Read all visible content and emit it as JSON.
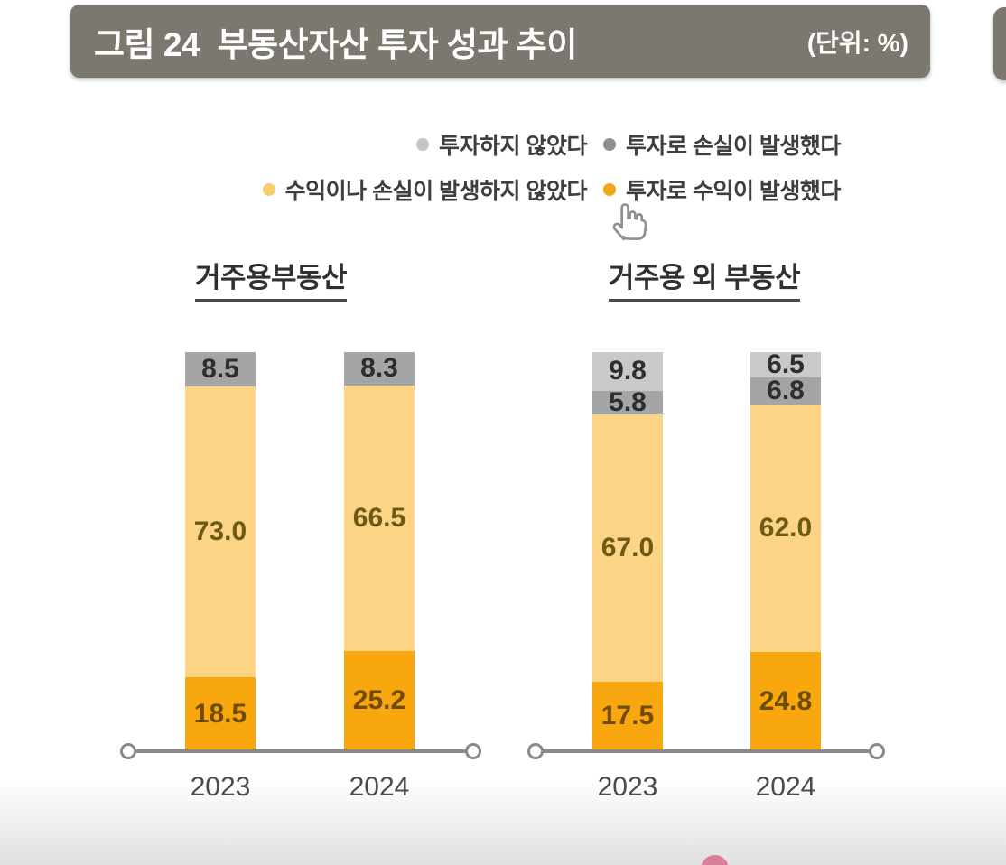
{
  "figure": {
    "title": "그림 24  부동산자산 투자 성과 추이",
    "unit": "(단위: %)",
    "title_bar_color": "#7C7870"
  },
  "legend": {
    "items": [
      {
        "label": "투자하지 않았다",
        "color": "#C5C5C5"
      },
      {
        "label": "투자로 손실이 발생했다",
        "color": "#8E8E8E"
      },
      {
        "label": "수익이나 손실이 발생하지 않았다",
        "color": "#F6CF70"
      },
      {
        "label": "투자로 수익이 발생했다",
        "color": "#F0A713"
      }
    ]
  },
  "cursor": {
    "icon": "hand-pointer"
  },
  "decorations": {
    "bottom_partial_dot_color": "#DB7E97"
  },
  "chart_data": [
    {
      "type": "bar",
      "subtype": "stacked-vertical",
      "title": "거주용부동산",
      "categories": [
        "2023",
        "2024"
      ],
      "stack_order": "bottom-to-top",
      "value_unit": "%",
      "ylim": [
        0,
        100
      ],
      "grid": false,
      "series": [
        {
          "name": "투자로 수익이 발생했다",
          "color": "#F8A70E",
          "label_color": "#704B03",
          "values": [
            18.5,
            25.2
          ]
        },
        {
          "name": "수익이나 손실이 발생하지 않았다",
          "color": "#FBD585",
          "label_color": "#6E5A16",
          "values": [
            73.0,
            66.5
          ]
        },
        {
          "name": "투자로 손실이 발생했다",
          "color": "#A5A5A5",
          "label_color": "#2E2E2E",
          "values": [
            8.5,
            8.3
          ]
        },
        {
          "name": "투자하지 않았다",
          "color": "#C9C9C9",
          "label_color": "#2E2E2E",
          "values": [
            null,
            null
          ]
        }
      ]
    },
    {
      "type": "bar",
      "subtype": "stacked-vertical",
      "title": "거주용 외 부동산",
      "categories": [
        "2023",
        "2024"
      ],
      "stack_order": "bottom-to-top",
      "value_unit": "%",
      "ylim": [
        0,
        100
      ],
      "grid": false,
      "series": [
        {
          "name": "투자로 수익이 발생했다",
          "color": "#F8A70E",
          "label_color": "#704B03",
          "values": [
            17.5,
            24.8
          ]
        },
        {
          "name": "수익이나 손실이 발생하지 않았다",
          "color": "#FBD585",
          "label_color": "#6E5A16",
          "values": [
            67.0,
            62.0
          ]
        },
        {
          "name": "투자로 손실이 발생했다",
          "color": "#A5A5A5",
          "label_color": "#2E2E2E",
          "values": [
            5.8,
            6.8
          ]
        },
        {
          "name": "투자하지 않았다",
          "color": "#C9C9C9",
          "label_color": "#2E2E2E",
          "values": [
            9.8,
            6.5
          ]
        }
      ]
    }
  ]
}
